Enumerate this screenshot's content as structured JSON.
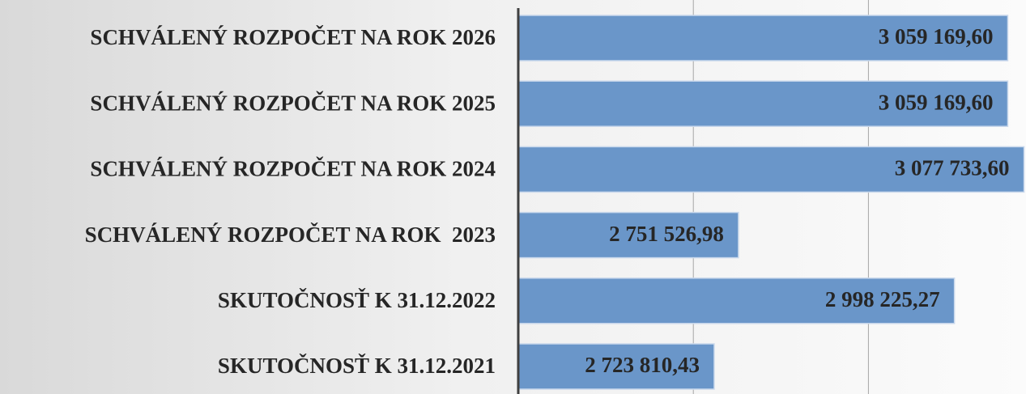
{
  "chart_data": {
    "type": "barh",
    "categories": [
      "SCHVÁLENÝ ROZPOČET NA ROK 2026",
      "SCHVÁLENÝ ROZPOČET NA ROK 2025",
      "SCHVÁLENÝ ROZPOČET NA ROK 2024",
      "SCHVÁLENÝ ROZPOČET NA ROK  2023",
      "SKUTOČNOSŤ K 31.12.2022",
      "SKUTOČNOSŤ K 31.12.2021"
    ],
    "values": [
      3059169.6,
      3059169.6,
      3077733.6,
      2751526.98,
      2998225.27,
      2723810.43
    ],
    "value_labels": [
      "3 059 169,60",
      "3 059 169,60",
      "3 077 733,60",
      "2 751 526,98",
      "2 998 225,27",
      "2 723 810,43"
    ],
    "color": "#6a96c9",
    "xlim": [
      2500000,
      3080000
    ],
    "xticks": [
      2500000,
      2700000,
      2900000
    ],
    "grid": true
  }
}
